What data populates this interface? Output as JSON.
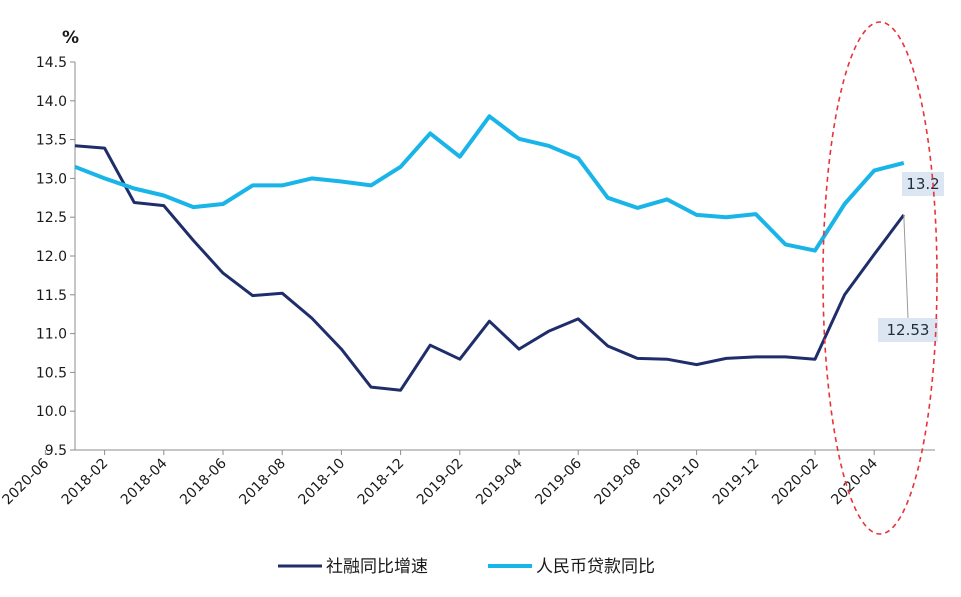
{
  "chart_data": {
    "type": "line",
    "ylabel": "%",
    "ylim": [
      9.5,
      14.5
    ],
    "yticks": [
      "9.5",
      "10.0",
      "10.5",
      "11.0",
      "11.5",
      "12.0",
      "12.5",
      "13.0",
      "13.5",
      "14.0",
      "14.5"
    ],
    "xtick_labels": [
      "2018-02",
      "2018-04",
      "2018-06",
      "2018-08",
      "2018-10",
      "2018-12",
      "2019-02",
      "2019-04",
      "2019-06",
      "2019-08",
      "2019-10",
      "2019-12",
      "2020-02",
      "2020-04",
      "2020-06"
    ],
    "x": [
      "2018-01",
      "2018-02",
      "2018-03",
      "2018-04",
      "2018-05",
      "2018-06",
      "2018-07",
      "2018-08",
      "2018-09",
      "2018-10",
      "2018-11",
      "2018-12",
      "2019-01",
      "2019-02",
      "2019-03",
      "2019-04",
      "2019-05",
      "2019-06",
      "2019-07",
      "2019-08",
      "2019-09",
      "2019-10",
      "2019-11",
      "2019-12",
      "2020-01",
      "2020-02",
      "2020-03",
      "2020-04",
      "2020-05"
    ],
    "series": [
      {
        "name": "社融同比增速",
        "color": "#1f2d6b",
        "values": [
          13.42,
          13.39,
          12.69,
          12.65,
          12.2,
          11.78,
          11.49,
          11.52,
          11.2,
          10.8,
          10.31,
          10.27,
          10.85,
          10.67,
          11.16,
          10.8,
          11.03,
          11.19,
          10.84,
          10.68,
          10.67,
          10.6,
          10.68,
          10.7,
          10.7,
          10.67,
          11.5,
          12.02,
          12.53
        ]
      },
      {
        "name": "人民币贷款同比",
        "color": "#19b4e8",
        "values": [
          13.15,
          13.0,
          12.87,
          12.78,
          12.63,
          12.67,
          12.91,
          12.91,
          13.0,
          12.96,
          12.91,
          13.15,
          13.58,
          13.28,
          13.8,
          13.51,
          13.42,
          13.26,
          12.75,
          12.62,
          12.73,
          12.53,
          12.5,
          12.54,
          12.15,
          12.07,
          12.67,
          13.1,
          13.2
        ]
      }
    ],
    "annotations": [
      {
        "text": "13.2",
        "series": "人民币贷款同比",
        "x": "2020-05"
      },
      {
        "text": "12.53",
        "series": "社融同比增速",
        "x": "2020-05"
      }
    ],
    "highlight_color": "#e8333a",
    "grid": false,
    "legend_position": "bottom"
  }
}
